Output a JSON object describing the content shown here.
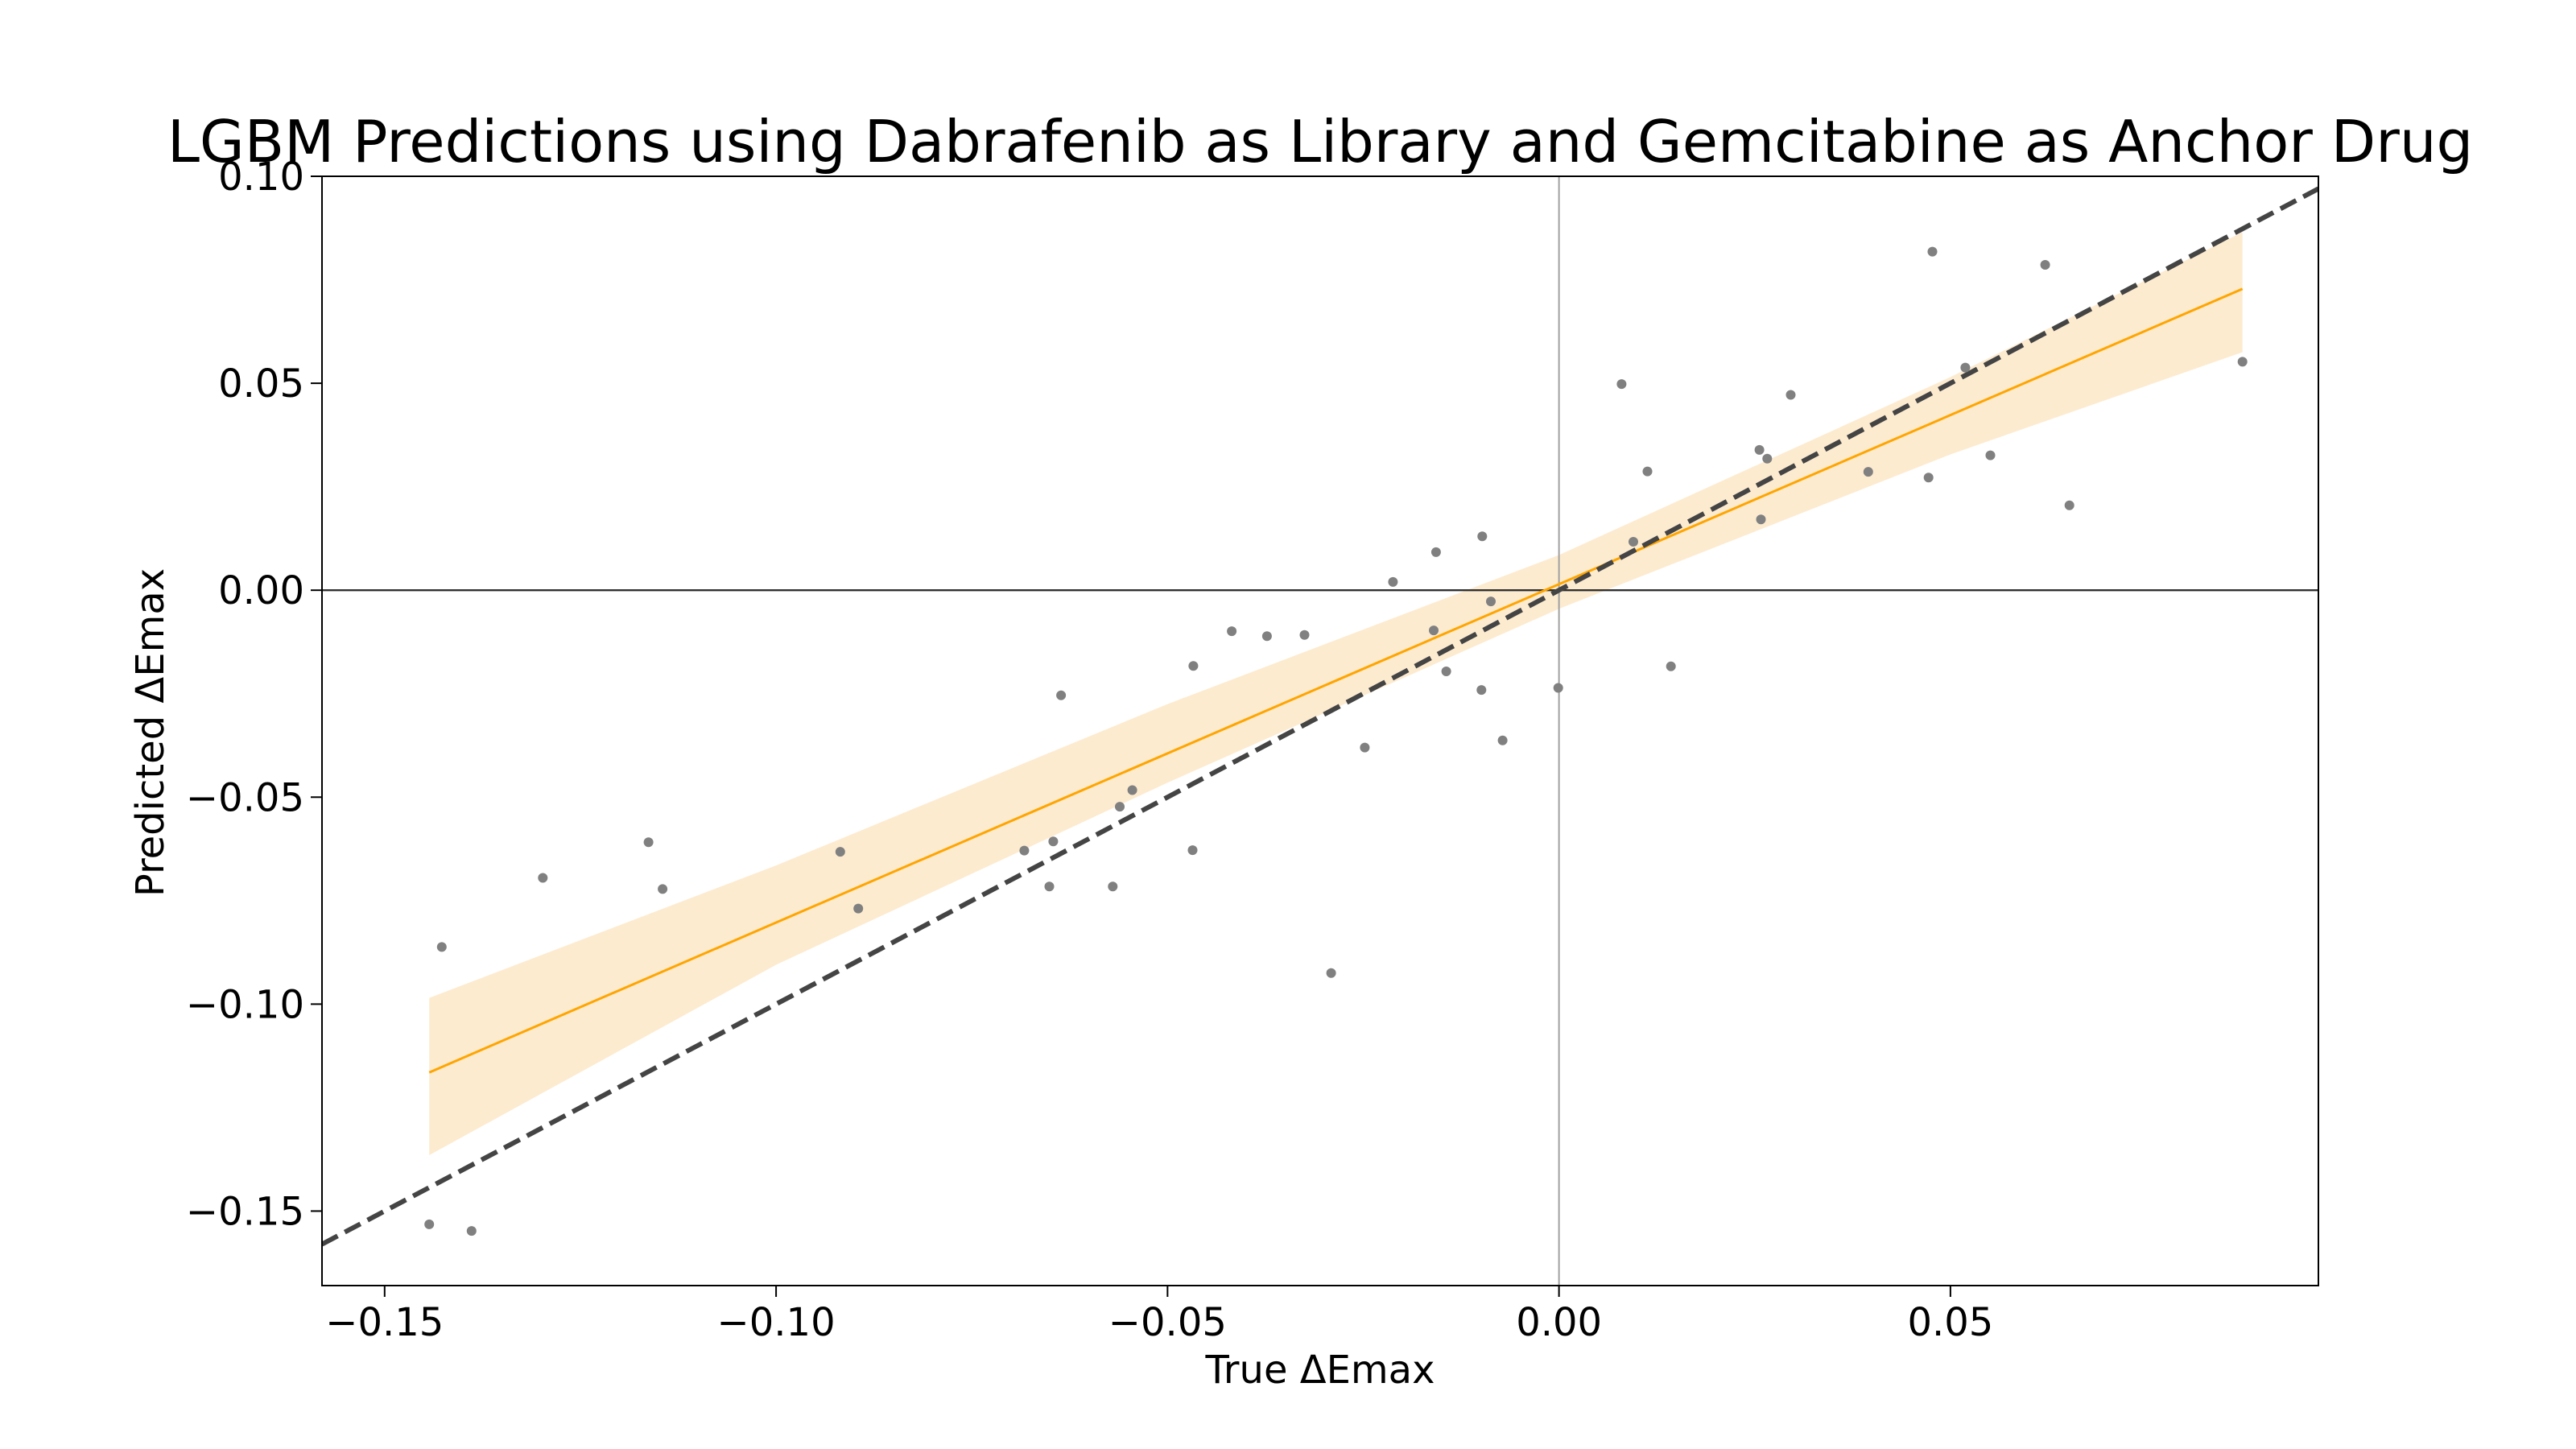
{
  "chart_data": {
    "type": "scatter",
    "title": "LGBM Predictions using Dabrafenib as Library and Gemcitabine as Anchor Drug",
    "xlabel": "True ΔEmax",
    "ylabel": "Predicted ΔEmax",
    "xlim": [
      -0.158,
      0.097
    ],
    "ylim": [
      -0.168,
      0.1
    ],
    "xticks": [
      {
        "value": -0.15,
        "label": "−0.15"
      },
      {
        "value": -0.1,
        "label": "−0.10"
      },
      {
        "value": -0.05,
        "label": "−0.05"
      },
      {
        "value": 0.0,
        "label": "0.00"
      },
      {
        "value": 0.05,
        "label": "0.05"
      }
    ],
    "yticks": [
      {
        "value": 0.1,
        "label": "0.10"
      },
      {
        "value": 0.05,
        "label": "0.05"
      },
      {
        "value": 0.0,
        "label": "0.00"
      },
      {
        "value": -0.05,
        "label": "−0.05"
      },
      {
        "value": -0.1,
        "label": "−0.10"
      },
      {
        "value": -0.15,
        "label": "−0.15"
      }
    ],
    "grid": false,
    "colors": {
      "points": "#808080",
      "regression": "#ffa500",
      "ci_band": "#fdebd0",
      "identity": "#444444",
      "zero_lines": "#000000"
    },
    "points": [
      [
        -0.1443,
        -0.1532
      ],
      [
        -0.1427,
        -0.0862
      ],
      [
        -0.1389,
        -0.1548
      ],
      [
        -0.1298,
        -0.0695
      ],
      [
        -0.1163,
        -0.0609
      ],
      [
        -0.1145,
        -0.0722
      ],
      [
        -0.0918,
        -0.0632
      ],
      [
        -0.0895,
        -0.0769
      ],
      [
        -0.0683,
        -0.0629
      ],
      [
        -0.0651,
        -0.0716
      ],
      [
        -0.0646,
        -0.0607
      ],
      [
        -0.0636,
        -0.0254
      ],
      [
        -0.057,
        -0.0716
      ],
      [
        -0.0561,
        -0.0523
      ],
      [
        -0.0545,
        -0.0483
      ],
      [
        -0.0468,
        -0.0628
      ],
      [
        -0.0467,
        -0.0183
      ],
      [
        -0.0418,
        -0.0099
      ],
      [
        -0.0373,
        -0.0111
      ],
      [
        -0.0325,
        -0.0108
      ],
      [
        -0.0291,
        -0.0925
      ],
      [
        -0.0248,
        -0.038
      ],
      [
        -0.0212,
        0.002
      ],
      [
        -0.016,
        -0.0097
      ],
      [
        -0.0157,
        0.0092
      ],
      [
        -0.0144,
        -0.0196
      ],
      [
        -0.0099,
        -0.0241
      ],
      [
        -0.0098,
        0.013
      ],
      [
        -0.0087,
        -0.0027
      ],
      [
        -0.0072,
        -0.0363
      ],
      [
        -0.0001,
        -0.0236
      ],
      [
        0.008,
        0.0498
      ],
      [
        0.0095,
        0.0117
      ],
      [
        0.0113,
        0.0287
      ],
      [
        0.0143,
        -0.0184
      ],
      [
        0.0256,
        0.0339
      ],
      [
        0.0258,
        0.0171
      ],
      [
        0.0266,
        0.0318
      ],
      [
        0.0296,
        0.0472
      ],
      [
        0.0395,
        0.0286
      ],
      [
        0.0472,
        0.0272
      ],
      [
        0.0477,
        0.0818
      ],
      [
        0.0519,
        0.0538
      ],
      [
        0.0551,
        0.0326
      ],
      [
        0.0621,
        0.0786
      ],
      [
        0.0652,
        0.0205
      ],
      [
        0.0873,
        0.0552
      ]
    ],
    "regression": {
      "x": [
        -0.1443,
        0.0873
      ],
      "y": [
        -0.1165,
        0.0728
      ]
    },
    "ci_band": {
      "x": [
        -0.1443,
        -0.1,
        -0.05,
        0.0,
        0.05,
        0.0873
      ],
      "lower": [
        -0.1365,
        -0.0905,
        -0.0465,
        -0.0045,
        0.0328,
        0.0575
      ],
      "upper": [
        -0.0985,
        -0.0665,
        -0.0275,
        0.0085,
        0.0515,
        0.0865
      ]
    },
    "identity_line": {
      "x": [
        -0.158,
        0.097
      ],
      "y": [
        -0.158,
        0.097
      ]
    }
  }
}
